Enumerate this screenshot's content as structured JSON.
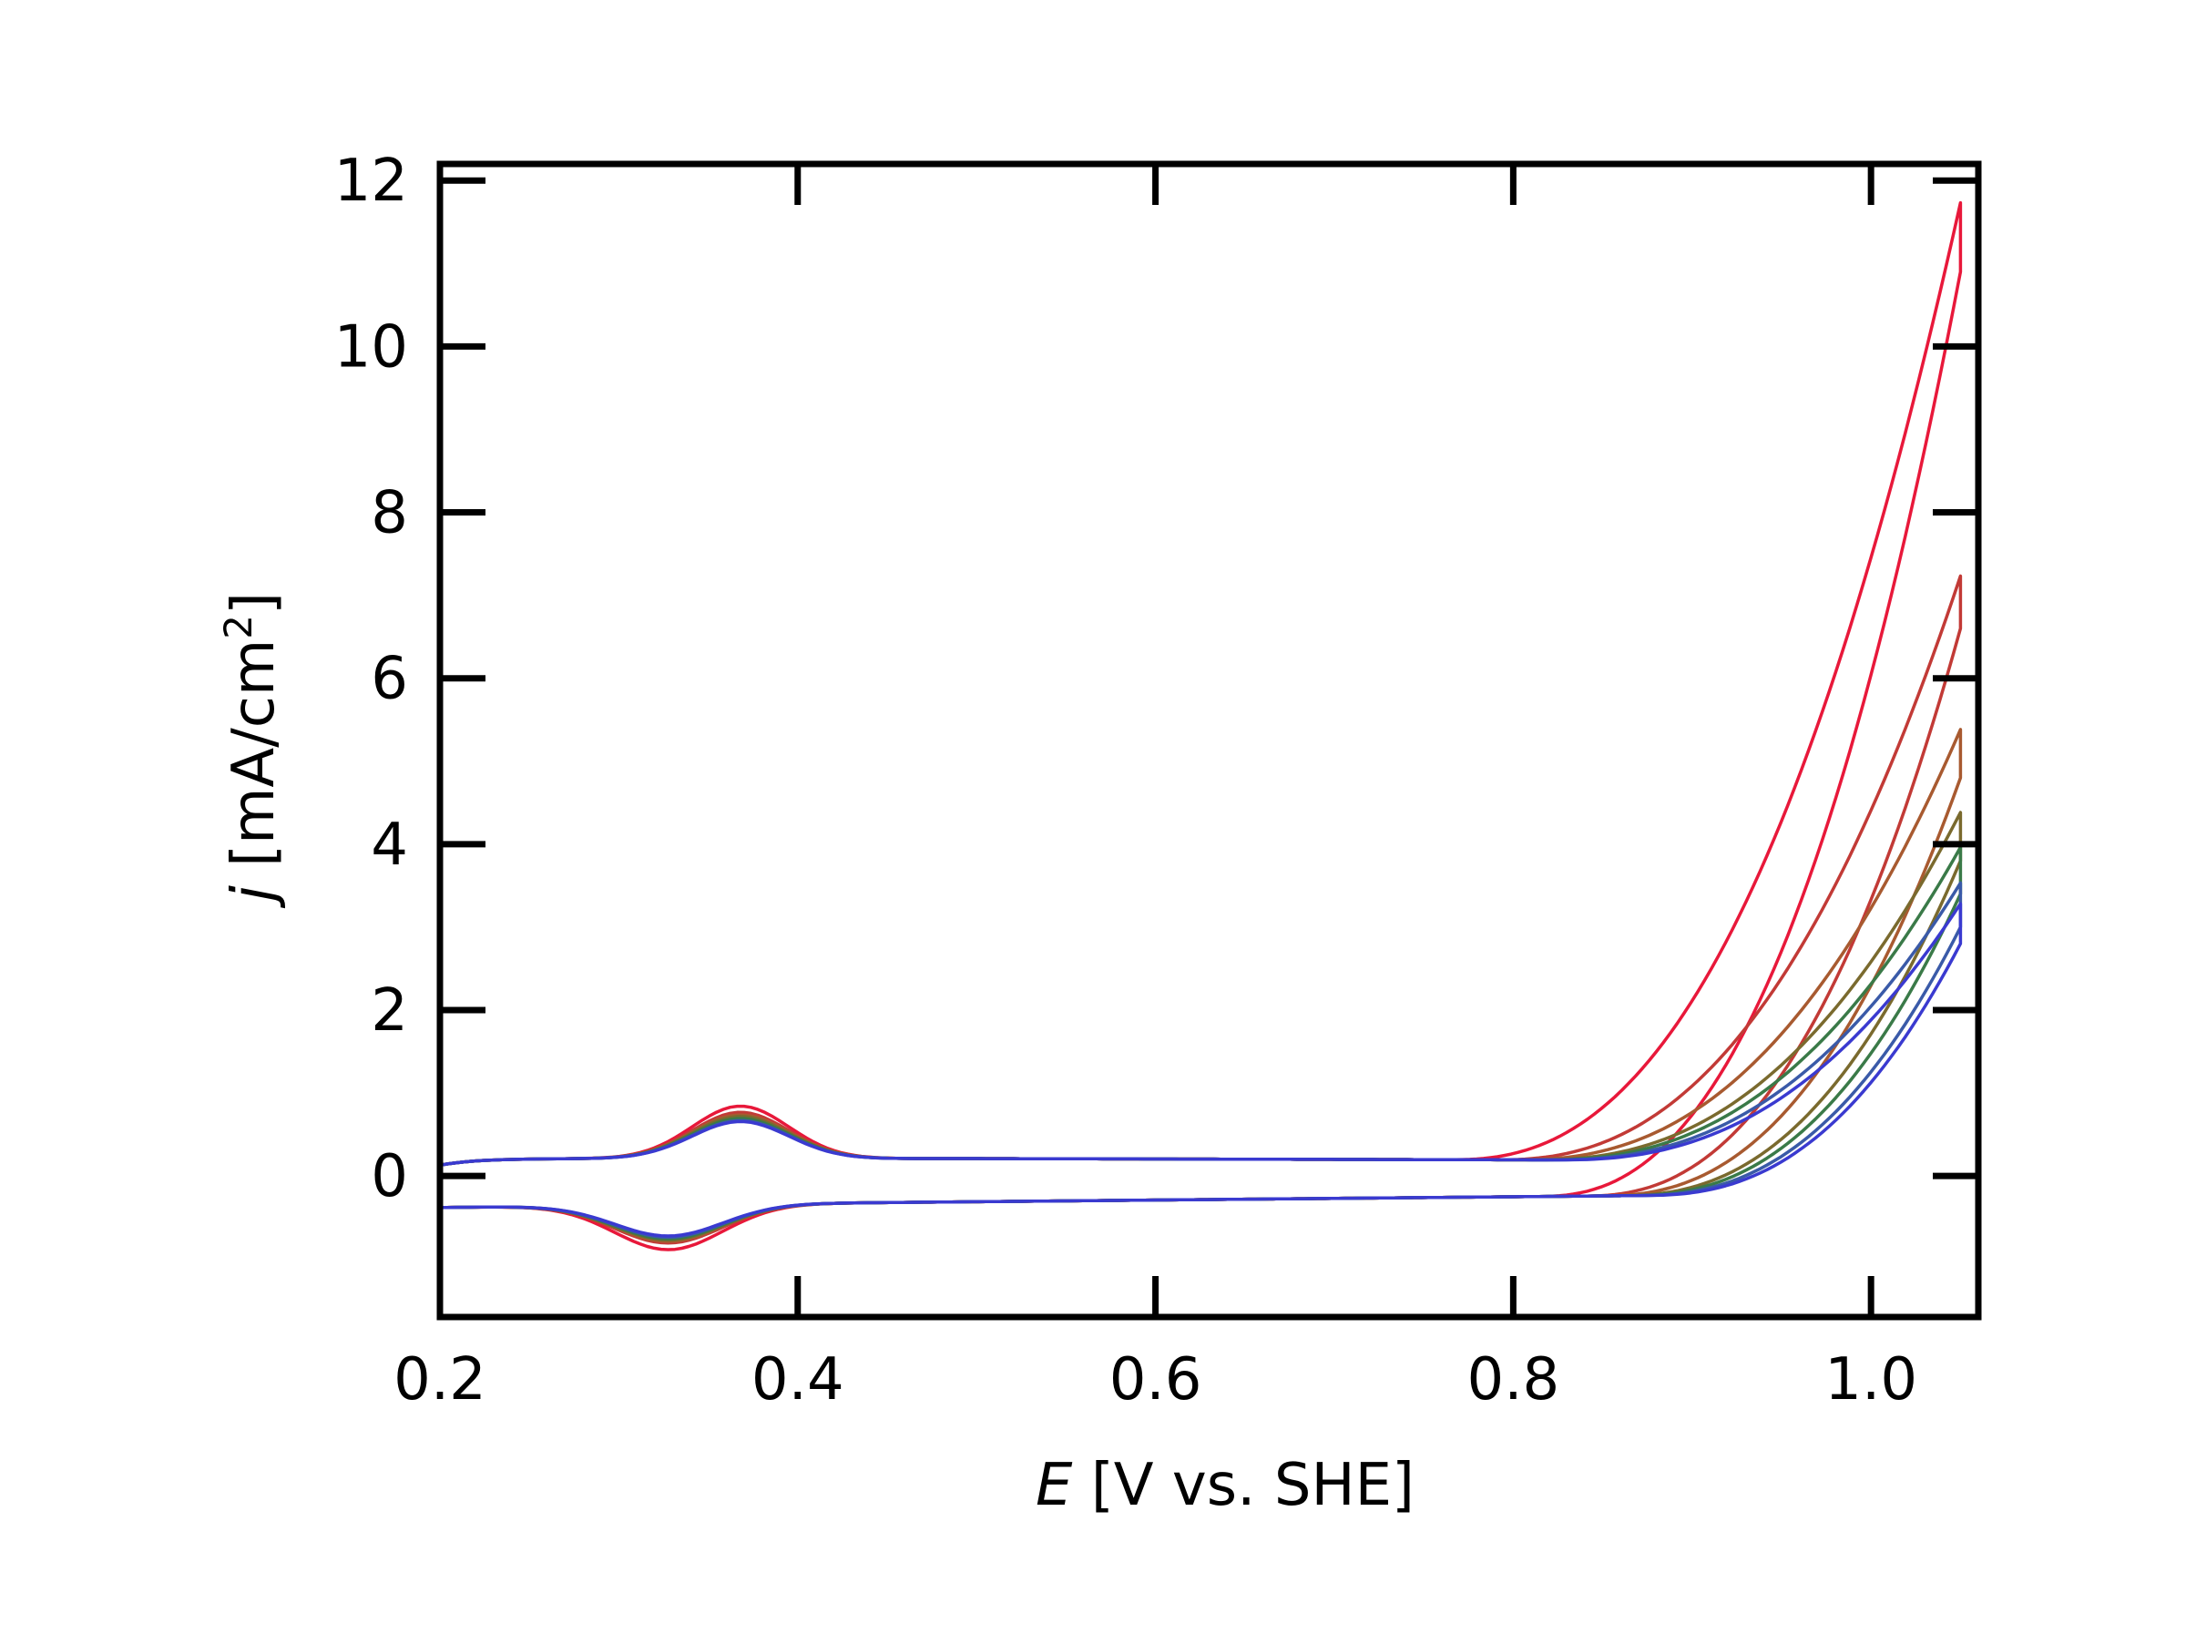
{
  "chart_data": {
    "type": "line",
    "title": "",
    "xlabel": {
      "symbol": "E",
      "text": " [V vs. SHE]"
    },
    "ylabel": {
      "symbol": "j",
      "text": " [mA/cm",
      "superscript": "2",
      "suffix": "]"
    },
    "xlim": [
      0.2,
      1.06
    ],
    "ylim": [
      -1.7,
      12.2
    ],
    "xticks": [
      0.2,
      0.4,
      0.6,
      0.8,
      1.0
    ],
    "xtick_labels": [
      "0.2",
      "0.4",
      "0.6",
      "0.8",
      "1.0"
    ],
    "yticks": [
      0,
      2,
      4,
      6,
      8,
      10,
      12
    ],
    "ytick_labels": [
      "0",
      "2",
      "4",
      "6",
      "8",
      "10",
      "12"
    ],
    "grid": false,
    "legend": "none",
    "series": [
      {
        "color": "#e8183a",
        "peak_ox": 1.02,
        "peak_red": -1.08,
        "onset": 0.765,
        "i_max": 11.55,
        "i_max_rev": 11.1
      },
      {
        "color": "#c23a36",
        "peak_ox": 0.9,
        "peak_red": -0.92,
        "onset": 0.79,
        "i_max": 7.05,
        "i_max_rev": 6.8
      },
      {
        "color": "#a85a30",
        "peak_ox": 0.85,
        "peak_red": -0.88,
        "onset": 0.8,
        "i_max": 5.2,
        "i_max_rev": 5.0
      },
      {
        "color": "#7a6a2e",
        "peak_ox": 0.82,
        "peak_red": -0.85,
        "onset": 0.81,
        "i_max": 4.2,
        "i_max_rev": 4.0
      },
      {
        "color": "#3a7a48",
        "peak_ox": 0.78,
        "peak_red": -0.82,
        "onset": 0.815,
        "i_max": 3.78,
        "i_max_rev": 3.6
      },
      {
        "color": "#3a5aa8",
        "peak_ox": 0.74,
        "peak_red": -0.78,
        "onset": 0.82,
        "i_max": 3.35,
        "i_max_rev": 3.2
      },
      {
        "color": "#3a3ad0",
        "peak_ox": 0.72,
        "peak_red": -0.75,
        "onset": 0.825,
        "i_max": 3.1,
        "i_max_rev": 3.0
      }
    ]
  }
}
